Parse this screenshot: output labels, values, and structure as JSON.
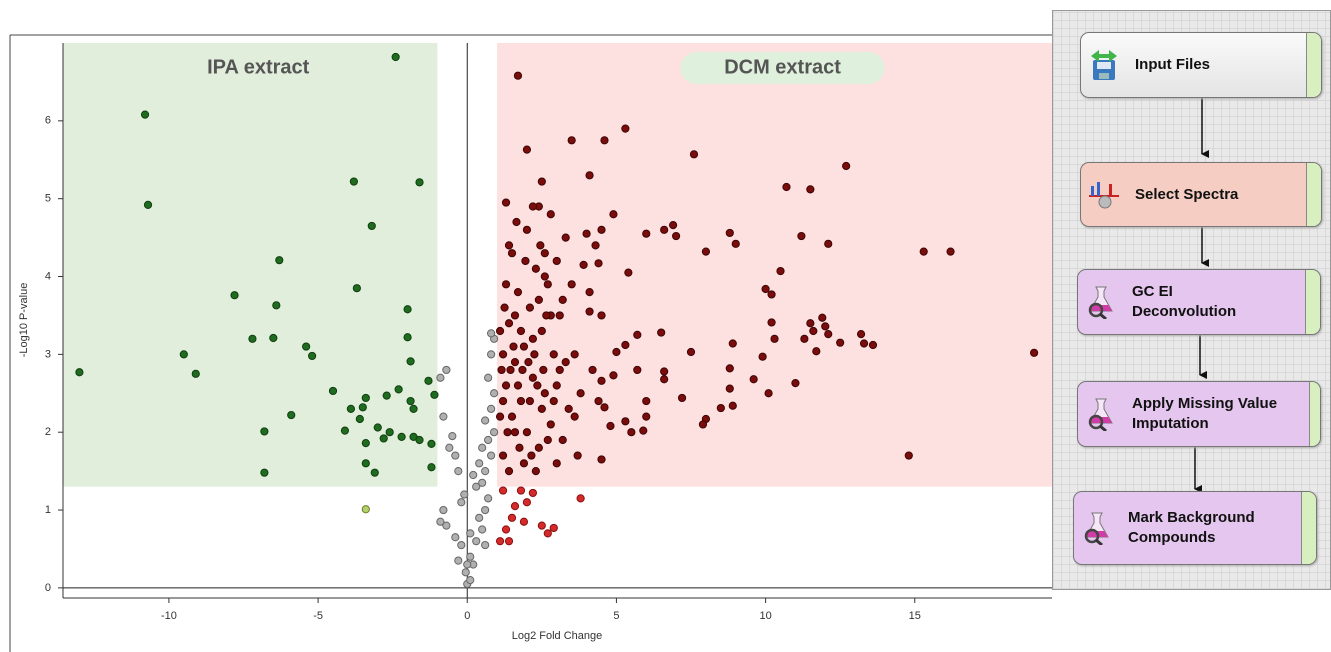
{
  "chart_data": {
    "type": "scatter",
    "x_label": "Log2 Fold Change",
    "y_label": "-Log10 P-value",
    "xlim": [
      -13.55,
      19.6
    ],
    "ylim": [
      -0.13,
      7.0
    ],
    "xticks": [
      -10,
      -5,
      0,
      5,
      10,
      15
    ],
    "yticks": [
      0,
      1,
      2,
      3,
      4,
      5,
      6
    ],
    "zero_line": true,
    "regions": [
      {
        "xlim": [
          -13.55,
          -1
        ],
        "ylim": [
          1.3,
          7.0
        ],
        "color": "#e1eedc",
        "label": "IPA extract"
      },
      {
        "xlim": [
          1,
          19.6
        ],
        "ylim": [
          1.3,
          7.0
        ],
        "color": "#fde0e0",
        "label": "DCM extract",
        "label_background": "#dff0dc"
      }
    ],
    "series": [
      {
        "color": "#1f6b1f",
        "stroke": "#0f3f0f",
        "x": [
          -13,
          -10.8,
          -10.7,
          -9.5,
          -9.1,
          -7.8,
          -7.2,
          -6.8,
          -6.8,
          -6.5,
          -6.4,
          -6.3,
          -5.9,
          -5.4,
          -5.2,
          -4.5,
          -4.1,
          -3.9,
          -3.8,
          -3.7,
          -3.6,
          -3.5,
          -3.4,
          -3.4,
          -3.4,
          -3.2,
          -3.1,
          -3.0,
          -2.8,
          -2.7,
          -2.6,
          -2.4,
          -2.3,
          -2.2,
          -2.0,
          -2.0,
          -1.9,
          -1.8,
          -1.8,
          -1.6,
          -1.6,
          -1.3,
          -1.2,
          -1.2,
          -1.1,
          -1.9
        ],
        "values": [
          2.77,
          6.08,
          4.92,
          3.0,
          2.75,
          3.76,
          3.2,
          2.01,
          1.48,
          3.21,
          3.63,
          4.21,
          2.22,
          3.1,
          2.98,
          2.53,
          2.02,
          2.3,
          5.22,
          3.85,
          2.17,
          2.32,
          2.44,
          1.86,
          1.6,
          4.65,
          1.48,
          2.06,
          1.92,
          2.47,
          2.0,
          6.82,
          2.55,
          1.94,
          3.58,
          3.22,
          2.91,
          1.94,
          2.3,
          5.21,
          1.9,
          2.66,
          1.55,
          1.85,
          2.48,
          2.4
        ]
      },
      {
        "color": "#b5cf6a",
        "stroke": "#6b7f2a",
        "x": [
          -3.4
        ],
        "values": [
          1.01
        ]
      },
      {
        "color": "#b0b0b0",
        "stroke": "#666666",
        "x": [
          0.0,
          0.1,
          -0.05,
          0.2,
          0.1,
          -0.2,
          0.3,
          -0.4,
          0.5,
          -0.7,
          0.4,
          -0.9,
          -0.8,
          0.6,
          -0.2,
          0.7,
          -0.1,
          0.3,
          0.5,
          0.2,
          0.6,
          0.4,
          0.8,
          0.5,
          0.7,
          0.9,
          0.6,
          0.8,
          -0.8,
          -0.6,
          -0.4,
          -0.5,
          -0.9,
          -0.7,
          0.9,
          0.7,
          0.8,
          0.9,
          0.8,
          -0.3,
          0.1,
          -0.3,
          0.0,
          0.6
        ],
        "values": [
          0.05,
          0.1,
          0.2,
          0.3,
          0.4,
          0.55,
          0.6,
          0.65,
          0.75,
          0.8,
          0.9,
          0.85,
          1.0,
          1.0,
          1.1,
          1.15,
          1.2,
          1.3,
          1.35,
          1.45,
          1.5,
          1.6,
          1.7,
          1.8,
          1.9,
          2.0,
          2.15,
          2.3,
          2.2,
          1.8,
          1.7,
          1.95,
          2.7,
          2.8,
          2.5,
          2.7,
          3.0,
          3.2,
          3.27,
          1.5,
          0.7,
          0.35,
          0.3,
          0.55
        ]
      },
      {
        "color": "#d42a2a",
        "stroke": "#8a1010",
        "x": [
          1.2,
          1.5,
          1.3,
          1.8,
          1.9,
          2.2,
          2.5,
          2.7,
          2.9,
          3.8,
          1.1,
          1.6,
          2.0,
          1.4
        ],
        "values": [
          1.25,
          0.9,
          0.75,
          1.25,
          0.85,
          1.22,
          0.8,
          0.7,
          0.77,
          1.15,
          0.6,
          1.05,
          1.1,
          0.6
        ]
      },
      {
        "color": "#7a0c0c",
        "stroke": "#3d0404",
        "x": [
          1.7,
          2.0,
          3.5,
          4.6,
          5.3,
          7.6,
          12.7,
          10.7,
          11.5,
          4.1,
          2.5,
          4.9,
          4.5,
          6.0,
          6.6,
          6.9,
          7.0,
          8.8,
          9.0,
          8.0,
          11.2,
          12.1,
          15.3,
          16.2,
          10.5,
          10.0,
          10.2,
          10.2,
          10.3,
          9.9,
          11.5,
          11.6,
          11.9,
          12.0,
          12.1,
          11.3,
          11.7,
          12.5,
          13.2,
          13.3,
          13.6,
          11.0,
          10.1,
          9.6,
          8.8,
          8.8,
          8.9,
          8.5,
          8.9,
          7.5,
          8.0,
          7.9,
          6.5,
          6.6,
          6.6,
          7.2,
          6.0,
          6.0,
          5.9,
          5.5,
          5.3,
          5.7,
          5.3,
          5.7,
          5.0,
          4.9,
          4.5,
          4.6,
          4.5,
          4.8,
          4.4,
          4.1,
          4.2,
          4.0,
          4.3,
          3.5,
          3.2,
          3.0,
          3.3,
          2.8,
          2.4,
          2.6,
          3.9,
          4.1,
          4.5,
          14.8,
          19.0,
          5.4,
          4.4
        ],
        "values": [
          6.58,
          5.63,
          5.75,
          5.75,
          5.9,
          5.57,
          5.42,
          5.15,
          5.12,
          5.3,
          5.22,
          4.8,
          4.6,
          4.55,
          4.6,
          4.66,
          4.52,
          4.56,
          4.42,
          4.32,
          4.52,
          4.42,
          4.32,
          4.32,
          4.07,
          3.84,
          3.77,
          3.41,
          3.2,
          2.97,
          3.4,
          3.3,
          3.47,
          3.36,
          3.26,
          3.2,
          3.04,
          3.15,
          3.26,
          3.14,
          3.12,
          2.63,
          2.5,
          2.68,
          2.82,
          2.56,
          2.34,
          2.31,
          3.14,
          3.03,
          2.17,
          2.1,
          3.28,
          2.78,
          2.68,
          2.44,
          2.4,
          2.2,
          2.02,
          2.0,
          2.14,
          2.8,
          3.12,
          3.25,
          3.03,
          2.73,
          2.66,
          2.32,
          1.65,
          2.08,
          2.4,
          3.55,
          2.8,
          4.55,
          4.4,
          3.9,
          3.7,
          4.2,
          4.5,
          4.8,
          4.9,
          4.3,
          4.15,
          3.8,
          3.5,
          1.7,
          3.02,
          4.05,
          4.17
        ]
      },
      {
        "color": "#7a0c0c",
        "stroke": "#3d0404",
        "x": [
          1.2,
          1.3,
          1.4,
          1.5,
          1.6,
          1.7,
          1.8,
          1.9,
          2.0,
          2.1,
          2.2,
          2.3,
          2.4,
          2.5,
          2.6,
          2.7,
          2.8,
          2.9,
          3.0,
          3.1,
          3.2,
          3.3,
          3.4,
          1.1,
          1.2,
          1.3,
          1.4,
          1.5,
          1.6,
          1.7,
          1.8,
          1.9,
          2.0,
          2.1,
          2.2,
          2.3,
          2.4,
          2.5,
          2.6,
          2.7,
          2.8,
          2.9,
          3.0,
          3.1,
          1.15,
          1.25,
          1.35,
          1.45,
          1.55,
          1.65,
          1.75,
          1.85,
          1.95,
          2.05,
          2.15,
          2.25,
          2.35,
          2.45,
          2.55,
          2.65,
          1.1,
          1.3,
          1.6,
          2.2,
          3.6,
          3.8,
          3.7,
          3.6,
          1.2,
          1.4
        ],
        "values": [
          3.0,
          2.6,
          3.4,
          2.2,
          2.9,
          3.8,
          2.4,
          3.1,
          2.0,
          3.6,
          2.7,
          4.1,
          1.8,
          3.3,
          2.5,
          3.9,
          2.1,
          3.0,
          2.6,
          3.5,
          1.9,
          2.9,
          2.3,
          2.2,
          1.7,
          3.9,
          1.5,
          4.3,
          2.0,
          2.6,
          3.3,
          1.6,
          4.6,
          2.4,
          3.2,
          1.5,
          3.7,
          2.3,
          4.0,
          1.9,
          3.5,
          2.4,
          1.6,
          2.8,
          2.8,
          3.6,
          2.0,
          2.8,
          3.1,
          4.7,
          1.8,
          2.8,
          4.2,
          2.9,
          1.7,
          3.0,
          2.6,
          4.4,
          2.8,
          3.5,
          3.3,
          4.95,
          3.5,
          4.9,
          3.0,
          2.5,
          1.7,
          2.2,
          2.4,
          4.4
        ]
      }
    ]
  },
  "workflow": {
    "nodes": [
      {
        "label": "Input Files"
      },
      {
        "label": "Select Spectra"
      },
      {
        "label": "GC EI Deconvolution"
      },
      {
        "label": "Apply Missing Value Imputation"
      },
      {
        "label": "Mark Background Compounds"
      }
    ]
  }
}
